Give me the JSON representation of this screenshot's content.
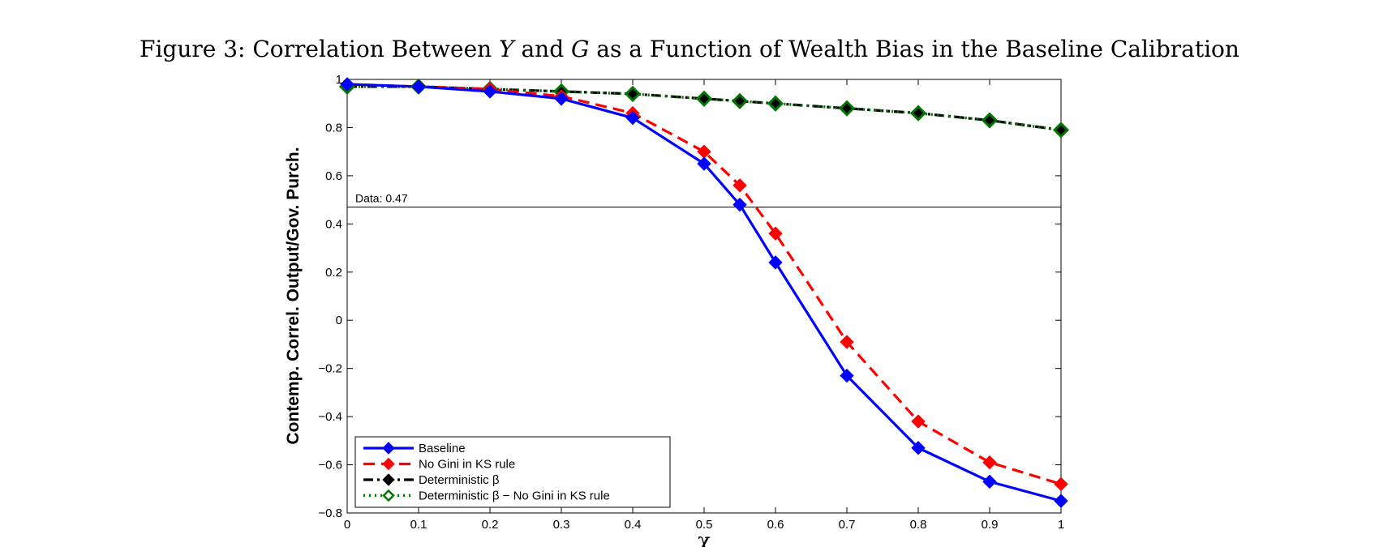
{
  "figure": {
    "title_parts": [
      "Figure 3: Correlation Between ",
      "Y",
      " and ",
      "G",
      " as a Function of Wealth Bias in the Baseline Calibration"
    ]
  },
  "chart_data": {
    "type": "line",
    "xlabel": "χ",
    "ylabel": "Contemp. Correl. Output/Gov. Purch.",
    "xlim": [
      0,
      1
    ],
    "ylim": [
      -0.8,
      1
    ],
    "xticks": [
      0,
      0.1,
      0.2,
      0.3,
      0.4,
      0.5,
      0.6,
      0.7,
      0.8,
      0.9,
      1
    ],
    "xtick_labels": [
      "0",
      "0.1",
      "0.2",
      "0.3",
      "0.4",
      "0.5",
      "0.6",
      "0.7",
      "0.8",
      "0.9",
      "1"
    ],
    "yticks": [
      -0.8,
      -0.6,
      -0.4,
      -0.2,
      0,
      0.2,
      0.4,
      0.6,
      0.8,
      1
    ],
    "ytick_labels": [
      "−0.8",
      "−0.6",
      "−0.4",
      "−0.2",
      "0",
      "0.2",
      "0.4",
      "0.6",
      "0.8",
      "1"
    ],
    "grid": false,
    "legend_position": "bottom-left",
    "reference_line": {
      "y": 0.47,
      "label": "Data: 0.47"
    },
    "x": [
      0,
      0.1,
      0.2,
      0.3,
      0.4,
      0.5,
      0.55,
      0.6,
      0.7,
      0.8,
      0.9,
      1
    ],
    "series": [
      {
        "name": "Baseline",
        "color": "#0000ff",
        "dash": "solid",
        "marker": "diamond-filled",
        "values": [
          0.98,
          0.97,
          0.95,
          0.92,
          0.84,
          0.65,
          0.48,
          0.24,
          -0.23,
          -0.53,
          -0.67,
          -0.75
        ]
      },
      {
        "name": "No Gini in KS rule",
        "color": "#ff0000",
        "dash": "dashed",
        "marker": "diamond-filled",
        "values": [
          0.98,
          0.97,
          0.96,
          0.93,
          0.86,
          0.7,
          0.56,
          0.36,
          -0.09,
          -0.42,
          -0.59,
          -0.68
        ]
      },
      {
        "name": "Deterministic β",
        "color": "#000000",
        "dash": "dashdot",
        "marker": "diamond-filled",
        "values": [
          0.97,
          0.97,
          0.96,
          0.95,
          0.94,
          0.92,
          0.91,
          0.9,
          0.88,
          0.86,
          0.83,
          0.79
        ]
      },
      {
        "name": "Deterministic β − No Gini in KS rule",
        "color": "#007700",
        "dash": "dotted",
        "marker": "diamond-open",
        "values": [
          0.97,
          0.97,
          0.96,
          0.95,
          0.94,
          0.92,
          0.91,
          0.9,
          0.88,
          0.86,
          0.83,
          0.79
        ]
      }
    ]
  }
}
